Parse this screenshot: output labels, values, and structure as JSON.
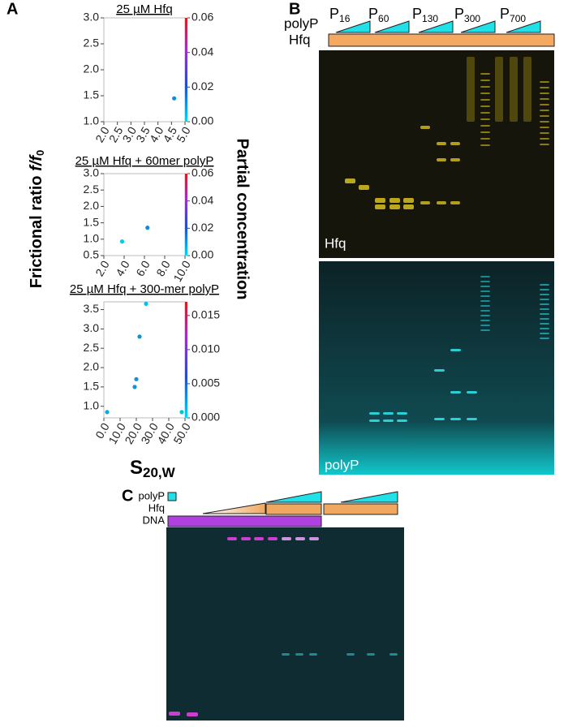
{
  "panel_labels": [
    "A",
    "B",
    "C"
  ],
  "axis_labels": {
    "y_main": "Frictional ratio ",
    "y_italic": "f/f",
    "y_sub": "0",
    "y2": "Partial concentration",
    "x_main": "S",
    "x_sub": "20,W"
  },
  "chart_data": [
    {
      "type": "scatter",
      "title": "25 µM Hfq",
      "x": [
        4.6
      ],
      "y": [
        1.45
      ],
      "c": [
        0.012
      ],
      "xlim": [
        2,
        5
      ],
      "xticks": [
        {
          "value": 2,
          "label": "2.0"
        },
        2.5,
        {
          "value": 3,
          "label": "3.0"
        },
        3.5,
        {
          "value": 4,
          "label": "4.0"
        },
        4.5,
        {
          "value": 5,
          "label": "5.0"
        }
      ],
      "ylim": [
        1,
        3
      ],
      "yticks": [
        {
          "value": 1,
          "label": "1.0"
        },
        1.5,
        {
          "value": 2,
          "label": "2.0"
        },
        2.5,
        {
          "value": 3,
          "label": "3.0"
        }
      ],
      "y2lim": [
        0,
        0.06
      ],
      "y2ticks": [
        {
          "value": 0,
          "label": "0.00"
        },
        {
          "value": 0.02,
          "label": "0.02"
        },
        {
          "value": 0.04,
          "label": "0.04"
        },
        {
          "value": 0.06,
          "label": "0.06"
        }
      ]
    },
    {
      "type": "scatter",
      "title": "25 µM Hfq + 60mer polyP",
      "x": [
        6.3,
        3.8
      ],
      "y": [
        1.35,
        0.93
      ],
      "c": [
        0.012,
        0.002
      ],
      "xlim": [
        2,
        10
      ],
      "xticks": [
        {
          "value": 2,
          "label": "2.0"
        },
        {
          "value": 4,
          "label": "4.0"
        },
        {
          "value": 6,
          "label": "6.0"
        },
        {
          "value": 8,
          "label": "8.0"
        },
        {
          "value": 10,
          "label": "10.0"
        }
      ],
      "ylim": [
        0.5,
        3
      ],
      "yticks": [
        0.5,
        {
          "value": 1,
          "label": "1.0"
        },
        1.5,
        {
          "value": 2,
          "label": "2.0"
        },
        2.5,
        {
          "value": 3,
          "label": "3.0"
        }
      ],
      "y2lim": [
        0,
        0.06
      ],
      "y2ticks": [
        {
          "value": 0,
          "label": "0.00"
        },
        {
          "value": 0.02,
          "label": "0.02"
        },
        {
          "value": 0.04,
          "label": "0.04"
        },
        {
          "value": 0.06,
          "label": "0.06"
        }
      ]
    },
    {
      "type": "scatter",
      "title": "25 µM Hfq + 300-mer polyP",
      "x": [
        26,
        22,
        20,
        19,
        2,
        48
      ],
      "y": [
        3.65,
        2.8,
        1.7,
        1.5,
        0.85,
        0.85
      ],
      "c": [
        0.001,
        0.003,
        0.003,
        0.003,
        0.002,
        0.001
      ],
      "xlim": [
        0,
        50
      ],
      "xticks": [
        {
          "value": 0,
          "label": "0.0"
        },
        {
          "value": 10,
          "label": "10.0"
        },
        {
          "value": 20,
          "label": "20.0"
        },
        {
          "value": 30,
          "label": "30.0"
        },
        {
          "value": 40,
          "label": "40.0"
        },
        {
          "value": 50,
          "label": "50.0"
        }
      ],
      "ylim": [
        0.7,
        3.7
      ],
      "yticks": [
        {
          "value": 1,
          "label": "1.0"
        },
        1.5,
        {
          "value": 2,
          "label": "2.0"
        },
        2.5,
        {
          "value": 3,
          "label": "3.0"
        },
        3.5
      ],
      "y2lim": [
        0,
        0.017
      ],
      "y2ticks": [
        {
          "value": 0,
          "label": "0.000"
        },
        0.005,
        {
          "value": 0.01,
          "label": "0.010"
        },
        0.015
      ]
    }
  ],
  "gel_b": {
    "header": [
      "polyP",
      "Hfq"
    ],
    "lanes": [
      {
        "name": "P",
        "sub": "16"
      },
      {
        "name": "P",
        "sub": "60"
      },
      {
        "name": "P",
        "sub": "130"
      },
      {
        "name": "P",
        "sub": "300"
      },
      {
        "name": "P",
        "sub": "700"
      }
    ],
    "images": [
      "Hfq",
      "polyP"
    ]
  },
  "gel_c": {
    "header": [
      "polyP",
      "Hfq",
      "DNA"
    ]
  }
}
